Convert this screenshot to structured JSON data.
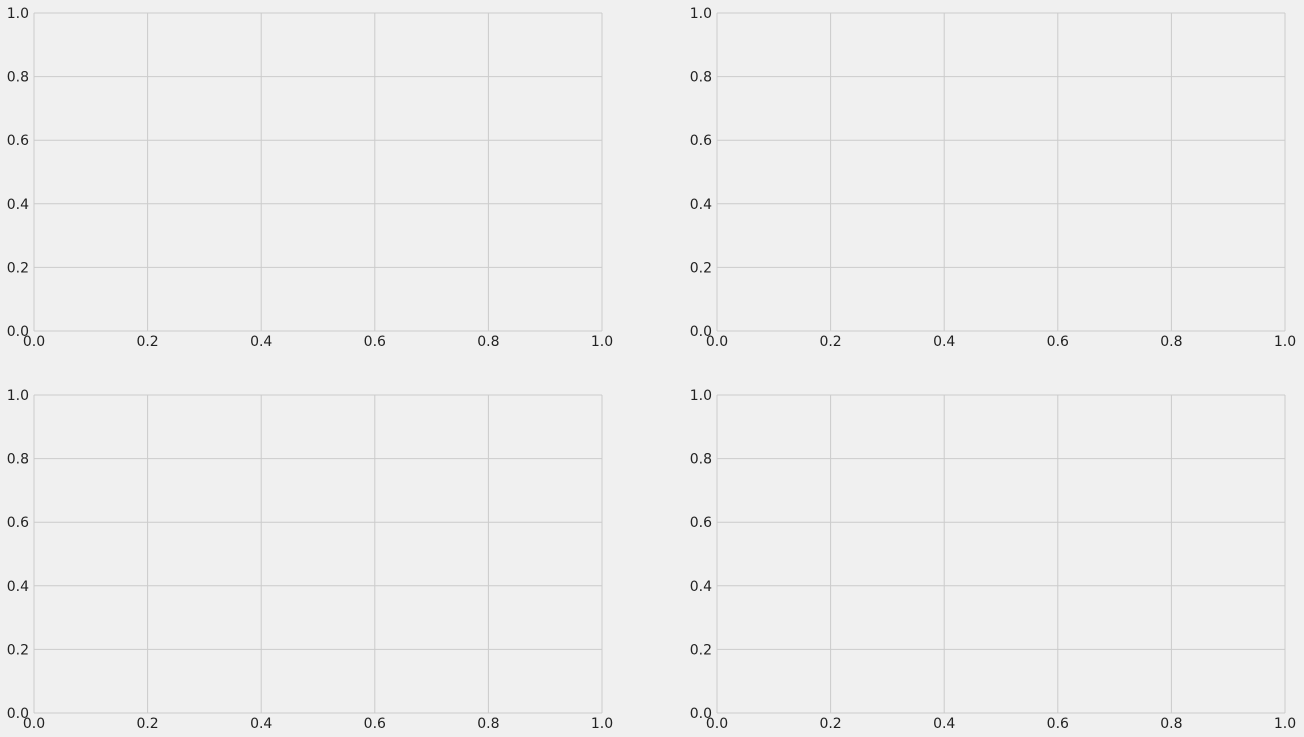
{
  "figure": {
    "background_color": "#f0f0f0",
    "grid_color": "#cbcbcb",
    "tick_label_color": "#222222"
  },
  "chart_data": [
    {
      "type": "line",
      "position": "top-left",
      "title": "",
      "xlabel": "",
      "ylabel": "",
      "xlim": [
        0,
        1
      ],
      "ylim": [
        0,
        1
      ],
      "x_ticks": [
        0,
        0.2,
        0.4,
        0.6,
        0.8,
        1
      ],
      "y_ticks": [
        0,
        0.2,
        0.4,
        0.6,
        0.8,
        1
      ],
      "x_tick_labels": [
        "0.0",
        "0.2",
        "0.4",
        "0.6",
        "0.8",
        "1.0"
      ],
      "y_tick_labels": [
        "0.0",
        "0.2",
        "0.4",
        "0.6",
        "0.8",
        "1.0"
      ],
      "grid": true,
      "series": []
    },
    {
      "type": "line",
      "position": "top-right",
      "title": "",
      "xlabel": "",
      "ylabel": "",
      "xlim": [
        0,
        1
      ],
      "ylim": [
        0,
        1
      ],
      "x_ticks": [
        0,
        0.2,
        0.4,
        0.6,
        0.8,
        1
      ],
      "y_ticks": [
        0,
        0.2,
        0.4,
        0.6,
        0.8,
        1
      ],
      "x_tick_labels": [
        "0.0",
        "0.2",
        "0.4",
        "0.6",
        "0.8",
        "1.0"
      ],
      "y_tick_labels": [
        "0.0",
        "0.2",
        "0.4",
        "0.6",
        "0.8",
        "1.0"
      ],
      "grid": true,
      "series": []
    },
    {
      "type": "line",
      "position": "bottom-left",
      "title": "",
      "xlabel": "",
      "ylabel": "",
      "xlim": [
        0,
        1
      ],
      "ylim": [
        0,
        1
      ],
      "x_ticks": [
        0,
        0.2,
        0.4,
        0.6,
        0.8,
        1
      ],
      "y_ticks": [
        0,
        0.2,
        0.4,
        0.6,
        0.8,
        1
      ],
      "x_tick_labels": [
        "0.0",
        "0.2",
        "0.4",
        "0.6",
        "0.8",
        "1.0"
      ],
      "y_tick_labels": [
        "0.0",
        "0.2",
        "0.4",
        "0.6",
        "0.8",
        "1.0"
      ],
      "grid": true,
      "series": []
    },
    {
      "type": "line",
      "position": "bottom-right",
      "title": "",
      "xlabel": "",
      "ylabel": "",
      "xlim": [
        0,
        1
      ],
      "ylim": [
        0,
        1
      ],
      "x_ticks": [
        0,
        0.2,
        0.4,
        0.6,
        0.8,
        1
      ],
      "y_ticks": [
        0,
        0.2,
        0.4,
        0.6,
        0.8,
        1
      ],
      "x_tick_labels": [
        "0.0",
        "0.2",
        "0.4",
        "0.6",
        "0.8",
        "1.0"
      ],
      "y_tick_labels": [
        "0.0",
        "0.2",
        "0.4",
        "0.6",
        "0.8",
        "1.0"
      ],
      "grid": true,
      "series": []
    }
  ]
}
